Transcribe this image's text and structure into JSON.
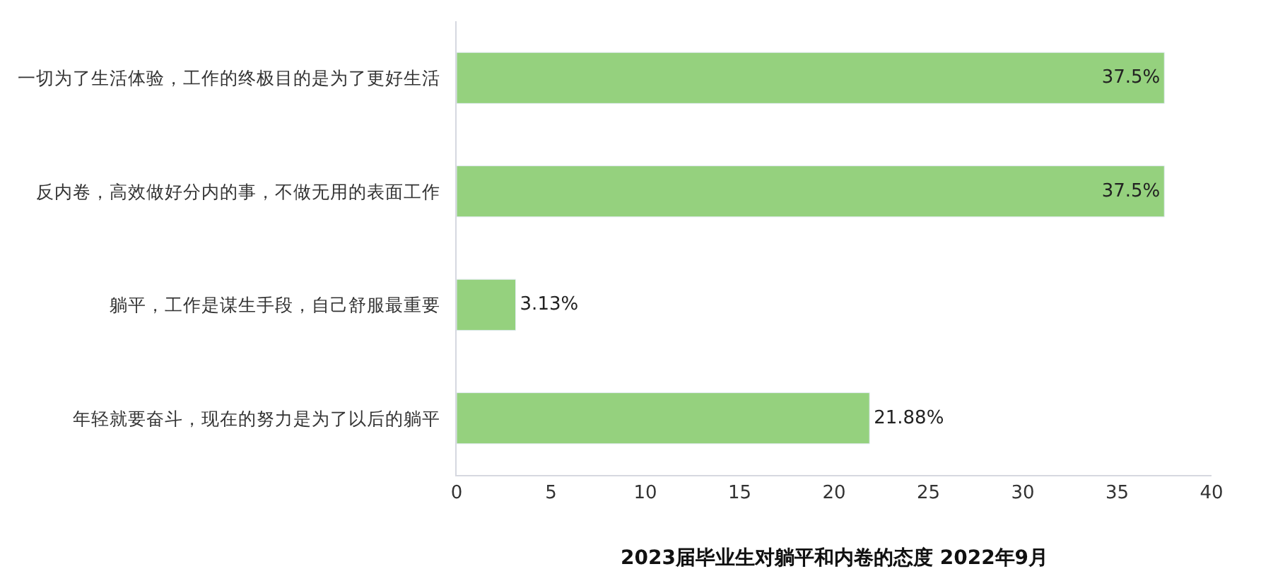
{
  "chart_data": {
    "type": "bar",
    "orientation": "horizontal",
    "title": "2023届毕业生对躺平和内卷的态度 2022年9月",
    "categories": [
      "一切为了生活体验，工作的终极目的是为了更好生活",
      "反内卷，高效做好分内的事，不做无用的表面工作",
      "躺平，工作是谋生手段，自己舒服最重要",
      "年轻就要奋斗，现在的努力是为了以后的躺平"
    ],
    "values": [
      37.5,
      37.5,
      3.13,
      21.88
    ],
    "value_labels": [
      "37.5%",
      "37.5%",
      "3.13%",
      "21.88%"
    ],
    "color": "#95d17e",
    "xlim": [
      0,
      40
    ],
    "xticks": [
      0,
      5,
      10,
      15,
      20,
      25,
      30,
      35,
      40
    ]
  }
}
